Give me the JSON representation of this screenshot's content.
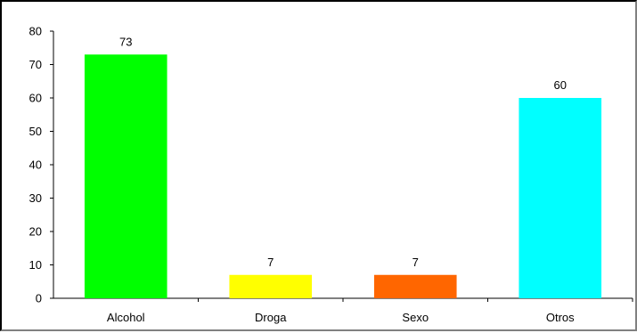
{
  "chart_data": {
    "type": "bar",
    "categories": [
      "Alcohol",
      "Droga",
      "Sexo",
      "Otros"
    ],
    "values": [
      73,
      7,
      7,
      60
    ],
    "data_labels": [
      "73",
      "7",
      "7",
      "60"
    ],
    "colors": [
      "#00ff00",
      "#ffff00",
      "#ff6600",
      "#00ffff"
    ],
    "ylim": [
      0,
      80
    ],
    "yticks": [
      0,
      10,
      20,
      30,
      40,
      50,
      60,
      70,
      80
    ],
    "grid": false,
    "title": "",
    "xlabel": "",
    "ylabel": ""
  }
}
